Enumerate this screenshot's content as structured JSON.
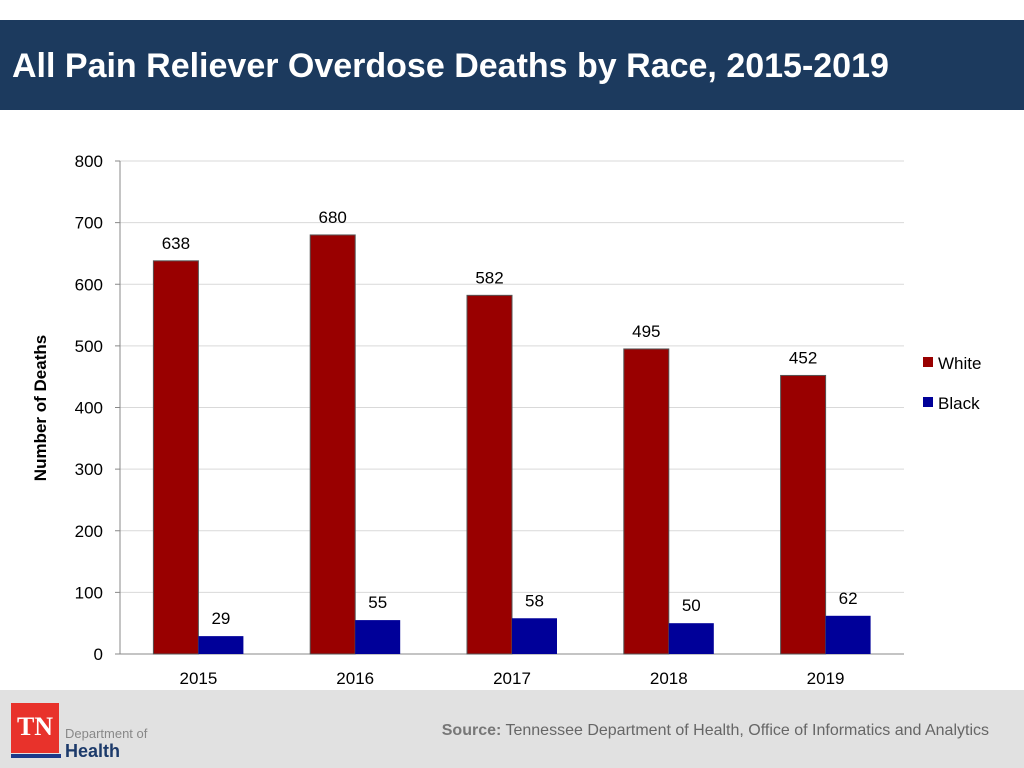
{
  "title": "All Pain Reliever Overdose Deaths by Race, 2015-2019",
  "footer": {
    "source_label": "Source:",
    "source_text": "Tennessee Department of Health, Office of Informatics and Analytics",
    "logo_text": "TN",
    "logo_line1": "Department of",
    "logo_line2": "Health"
  },
  "chart_data": {
    "type": "bar",
    "title": "All Pain Reliever Overdose Deaths by Race, 2015-2019",
    "ylabel": "Number of Deaths",
    "xlabel": "",
    "ylim": [
      0,
      800
    ],
    "yticks": [
      0,
      100,
      200,
      300,
      400,
      500,
      600,
      700,
      800
    ],
    "grid": true,
    "legend": "right",
    "categories": [
      "2015",
      "2016",
      "2017",
      "2018",
      "2019"
    ],
    "series": [
      {
        "name": "White",
        "color": "#990000",
        "values": [
          638,
          680,
          582,
          495,
          452
        ]
      },
      {
        "name": "Black",
        "color": "#000099",
        "values": [
          29,
          55,
          58,
          50,
          62
        ]
      }
    ]
  }
}
